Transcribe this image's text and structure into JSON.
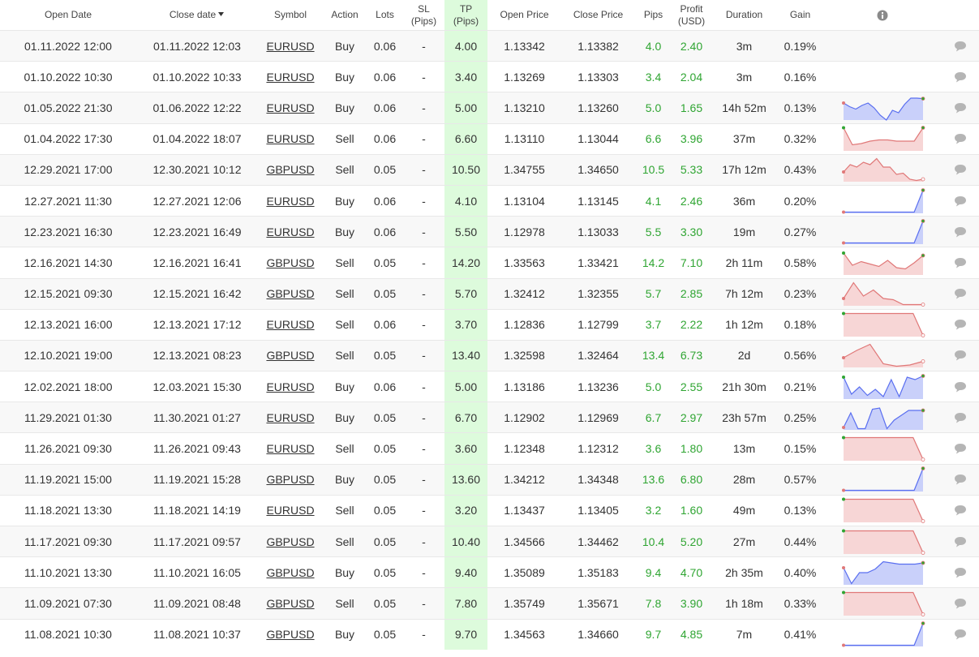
{
  "table": {
    "headers": [
      "Open Date",
      "Close date",
      "Symbol",
      "Action",
      "Lots",
      "SL\n(Pips)",
      "TP\n(Pips)",
      "Open Price",
      "Close Price",
      "Pips",
      "Profit\n(USD)",
      "Duration",
      "Gain"
    ],
    "rows": [
      [
        "01.11.2022 12:00",
        "01.11.2022 12:03",
        "EURUSD",
        "Buy",
        "0.06",
        "-",
        "4.00",
        "1.13342",
        "1.13382",
        "4.0",
        "2.40",
        "3m",
        "0.19%"
      ],
      [
        "01.10.2022 10:30",
        "01.10.2022 10:33",
        "EURUSD",
        "Buy",
        "0.06",
        "-",
        "3.40",
        "1.13269",
        "1.13303",
        "3.4",
        "2.04",
        "3m",
        "0.16%"
      ],
      [
        "01.05.2022 21:30",
        "01.06.2022 12:22",
        "EURUSD",
        "Buy",
        "0.06",
        "-",
        "5.00",
        "1.13210",
        "1.13260",
        "5.0",
        "1.65",
        "14h 52m",
        "0.13%"
      ],
      [
        "01.04.2022 17:30",
        "01.04.2022 18:07",
        "EURUSD",
        "Sell",
        "0.06",
        "-",
        "6.60",
        "1.13110",
        "1.13044",
        "6.6",
        "3.96",
        "37m",
        "0.32%"
      ],
      [
        "12.29.2021 17:00",
        "12.30.2021 10:12",
        "GBPUSD",
        "Sell",
        "0.05",
        "-",
        "10.50",
        "1.34755",
        "1.34650",
        "10.5",
        "5.33",
        "17h 12m",
        "0.43%"
      ],
      [
        "12.27.2021 11:30",
        "12.27.2021 12:06",
        "EURUSD",
        "Buy",
        "0.06",
        "-",
        "4.10",
        "1.13104",
        "1.13145",
        "4.1",
        "2.46",
        "36m",
        "0.20%"
      ],
      [
        "12.23.2021 16:30",
        "12.23.2021 16:49",
        "EURUSD",
        "Buy",
        "0.06",
        "-",
        "5.50",
        "1.12978",
        "1.13033",
        "5.5",
        "3.30",
        "19m",
        "0.27%"
      ],
      [
        "12.16.2021 14:30",
        "12.16.2021 16:41",
        "GBPUSD",
        "Sell",
        "0.05",
        "-",
        "14.20",
        "1.33563",
        "1.33421",
        "14.2",
        "7.10",
        "2h 11m",
        "0.58%"
      ],
      [
        "12.15.2021 09:30",
        "12.15.2021 16:42",
        "GBPUSD",
        "Sell",
        "0.05",
        "-",
        "5.70",
        "1.32412",
        "1.32355",
        "5.7",
        "2.85",
        "7h 12m",
        "0.23%"
      ],
      [
        "12.13.2021 16:00",
        "12.13.2021 17:12",
        "EURUSD",
        "Sell",
        "0.06",
        "-",
        "3.70",
        "1.12836",
        "1.12799",
        "3.7",
        "2.22",
        "1h 12m",
        "0.18%"
      ],
      [
        "12.10.2021 19:00",
        "12.13.2021 08:23",
        "GBPUSD",
        "Sell",
        "0.05",
        "-",
        "13.40",
        "1.32598",
        "1.32464",
        "13.4",
        "6.73",
        "2d",
        "0.56%"
      ],
      [
        "12.02.2021 18:00",
        "12.03.2021 15:30",
        "EURUSD",
        "Buy",
        "0.06",
        "-",
        "5.00",
        "1.13186",
        "1.13236",
        "5.0",
        "2.55",
        "21h 30m",
        "0.21%"
      ],
      [
        "11.29.2021 01:30",
        "11.30.2021 01:27",
        "EURUSD",
        "Buy",
        "0.05",
        "-",
        "6.70",
        "1.12902",
        "1.12969",
        "6.7",
        "2.97",
        "23h 57m",
        "0.25%"
      ],
      [
        "11.26.2021 09:30",
        "11.26.2021 09:43",
        "EURUSD",
        "Sell",
        "0.05",
        "-",
        "3.60",
        "1.12348",
        "1.12312",
        "3.6",
        "1.80",
        "13m",
        "0.15%"
      ],
      [
        "11.19.2021 15:00",
        "11.19.2021 15:28",
        "GBPUSD",
        "Buy",
        "0.05",
        "-",
        "13.60",
        "1.34212",
        "1.34348",
        "13.6",
        "6.80",
        "28m",
        "0.57%"
      ],
      [
        "11.18.2021 13:30",
        "11.18.2021 14:19",
        "EURUSD",
        "Sell",
        "0.05",
        "-",
        "3.20",
        "1.13437",
        "1.13405",
        "3.2",
        "1.60",
        "49m",
        "0.13%"
      ],
      [
        "11.17.2021 09:30",
        "11.17.2021 09:57",
        "GBPUSD",
        "Sell",
        "0.05",
        "-",
        "10.40",
        "1.34566",
        "1.34462",
        "10.4",
        "5.20",
        "27m",
        "0.44%"
      ],
      [
        "11.10.2021 13:30",
        "11.10.2021 16:05",
        "GBPUSD",
        "Buy",
        "0.05",
        "-",
        "9.40",
        "1.35089",
        "1.35183",
        "9.4",
        "4.70",
        "2h 35m",
        "0.40%"
      ],
      [
        "11.09.2021 07:30",
        "11.09.2021 08:48",
        "GBPUSD",
        "Sell",
        "0.05",
        "-",
        "7.80",
        "1.35749",
        "1.35671",
        "7.8",
        "3.90",
        "1h 18m",
        "0.33%"
      ],
      [
        "11.08.2021 10:30",
        "11.08.2021 10:37",
        "GBPUSD",
        "Buy",
        "0.05",
        "-",
        "9.70",
        "1.34563",
        "1.34660",
        "9.7",
        "4.85",
        "7m",
        "0.41%"
      ]
    ]
  }
}
